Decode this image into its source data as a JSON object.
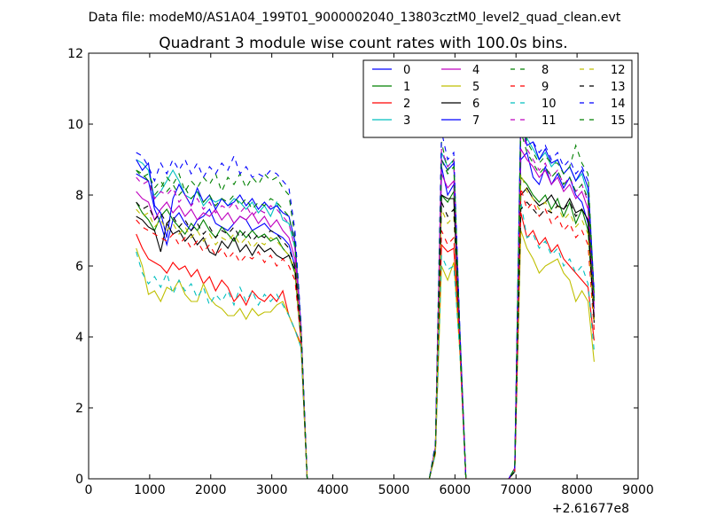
{
  "suptitle": "Data file: modeM0/AS1A04_199T01_9000002040_13803cztM0_level2_quad_clean.evt",
  "chart_data": {
    "type": "line",
    "title": "Quadrant 3 module wise count rates with 100.0s bins.",
    "xlabel": "",
    "ylabel": "",
    "x_offset_label": "+2.61677e8",
    "xlim": [
      0,
      9000
    ],
    "ylim": [
      0,
      12
    ],
    "xticks": [
      0,
      1000,
      2000,
      3000,
      4000,
      5000,
      6000,
      7000,
      8000,
      9000
    ],
    "yticks": [
      0,
      2,
      4,
      6,
      8,
      10,
      12
    ],
    "x": [
      780,
      880,
      980,
      1080,
      1180,
      1280,
      1380,
      1480,
      1580,
      1680,
      1780,
      1880,
      1980,
      2080,
      2180,
      2280,
      2380,
      2480,
      2580,
      2680,
      2780,
      2880,
      2980,
      3080,
      3180,
      3280,
      3380,
      3480,
      3580,
      3680,
      5580,
      5680,
      5780,
      5880,
      5980,
      6080,
      6180,
      6280,
      6880,
      6980,
      7080,
      7180,
      7280,
      7380,
      7480,
      7580,
      7680,
      7780,
      7880,
      7980,
      8080,
      8180,
      8280
    ],
    "legend": {
      "location": "upper right",
      "ncol": 4
    },
    "series": [
      {
        "name": "0",
        "color": "#0000ff",
        "dash": "solid",
        "values": [
          8.6,
          8.5,
          8.4,
          7.6,
          7.2,
          6.6,
          7.3,
          7.5,
          7.2,
          7.0,
          7.3,
          7.4,
          7.6,
          7.2,
          7.1,
          7.0,
          7.2,
          7.4,
          7.3,
          7.0,
          7.1,
          7.2,
          7.0,
          6.9,
          6.8,
          6.6,
          6.0,
          4.0,
          0.0,
          0.0,
          0.0,
          0.8,
          8.8,
          8.0,
          8.3,
          4.0,
          0.0,
          0.0,
          0.0,
          0.2,
          9.0,
          9.2,
          8.5,
          8.3,
          8.8,
          8.3,
          8.6,
          8.2,
          8.5,
          8.0,
          7.8,
          7.2,
          4.8
        ]
      },
      {
        "name": "1",
        "color": "#008000",
        "dash": "solid",
        "values": [
          7.8,
          7.5,
          7.3,
          7.0,
          7.4,
          7.6,
          7.3,
          7.1,
          6.9,
          7.2,
          7.0,
          7.3,
          7.0,
          6.8,
          7.1,
          6.9,
          6.7,
          7.0,
          6.8,
          7.0,
          6.8,
          6.9,
          6.7,
          6.8,
          6.5,
          6.3,
          5.8,
          3.9,
          0.0,
          0.0,
          0.0,
          0.8,
          8.0,
          7.8,
          8.1,
          4.0,
          0.0,
          0.0,
          0.0,
          0.2,
          8.5,
          8.3,
          8.0,
          7.8,
          8.0,
          7.6,
          7.9,
          7.4,
          7.8,
          7.2,
          7.6,
          7.0,
          4.5
        ]
      },
      {
        "name": "2",
        "color": "#ff0000",
        "dash": "solid",
        "values": [
          6.9,
          6.5,
          6.2,
          6.1,
          6.0,
          5.8,
          6.1,
          5.9,
          6.0,
          5.7,
          5.9,
          5.5,
          5.7,
          5.3,
          5.6,
          5.4,
          5.0,
          5.2,
          4.9,
          5.3,
          5.1,
          5.0,
          5.2,
          5.0,
          5.3,
          4.6,
          4.2,
          3.8,
          0.0,
          0.0,
          0.0,
          0.7,
          6.6,
          6.4,
          6.5,
          3.8,
          0.0,
          0.0,
          0.0,
          0.2,
          7.5,
          6.8,
          7.0,
          6.6,
          6.8,
          6.4,
          6.6,
          6.2,
          6.0,
          5.8,
          5.6,
          5.4,
          3.9
        ]
      },
      {
        "name": "3",
        "color": "#00bfbf",
        "dash": "solid",
        "values": [
          9.0,
          8.9,
          8.7,
          7.9,
          8.1,
          8.4,
          8.7,
          8.4,
          8.0,
          7.9,
          8.1,
          7.7,
          7.9,
          7.8,
          7.9,
          7.7,
          7.9,
          7.8,
          7.6,
          7.8,
          7.5,
          7.7,
          7.4,
          7.8,
          7.3,
          7.2,
          6.5,
          4.2,
          0.0,
          0.0,
          0.0,
          0.9,
          9.2,
          8.8,
          9.0,
          4.2,
          0.0,
          0.0,
          0.0,
          0.3,
          10.5,
          9.6,
          9.3,
          9.0,
          9.2,
          8.8,
          9.0,
          8.6,
          8.8,
          8.4,
          8.6,
          8.0,
          5.0
        ]
      },
      {
        "name": "4",
        "color": "#bf00bf",
        "dash": "solid",
        "values": [
          8.1,
          7.9,
          7.8,
          7.3,
          7.6,
          7.8,
          7.5,
          7.7,
          7.4,
          7.6,
          7.3,
          7.5,
          7.4,
          7.6,
          7.3,
          7.5,
          7.2,
          7.4,
          7.3,
          7.5,
          7.2,
          7.4,
          7.1,
          7.3,
          7.0,
          6.8,
          6.2,
          4.1,
          0.0,
          0.0,
          0.0,
          0.8,
          8.6,
          8.2,
          8.4,
          4.0,
          0.0,
          0.0,
          0.0,
          0.2,
          9.3,
          9.0,
          8.8,
          8.5,
          8.7,
          8.3,
          8.5,
          8.1,
          8.3,
          7.9,
          8.1,
          7.6,
          4.6
        ]
      },
      {
        "name": "5",
        "color": "#bfbf00",
        "dash": "solid",
        "values": [
          6.5,
          6.0,
          5.2,
          5.3,
          5.0,
          5.4,
          5.3,
          5.6,
          5.2,
          5.0,
          5.0,
          5.5,
          5.1,
          4.9,
          4.8,
          4.6,
          4.6,
          4.8,
          4.5,
          4.8,
          4.6,
          4.7,
          4.7,
          4.9,
          5.0,
          4.6,
          4.2,
          3.7,
          0.0,
          0.0,
          0.0,
          0.7,
          6.0,
          5.6,
          6.1,
          3.6,
          0.0,
          0.0,
          0.0,
          0.2,
          7.0,
          6.5,
          6.2,
          5.8,
          6.0,
          6.1,
          6.2,
          5.8,
          5.6,
          5.0,
          5.3,
          5.0,
          3.3
        ]
      },
      {
        "name": "6",
        "color": "#000000",
        "dash": "solid",
        "values": [
          7.4,
          7.3,
          7.1,
          7.0,
          6.4,
          7.2,
          6.9,
          7.0,
          6.7,
          6.9,
          6.6,
          6.8,
          6.4,
          6.3,
          6.7,
          6.5,
          6.8,
          6.4,
          6.6,
          6.3,
          6.6,
          6.4,
          6.5,
          6.3,
          6.2,
          6.3,
          5.9,
          3.9,
          0.0,
          0.0,
          0.0,
          0.8,
          8.0,
          7.9,
          7.9,
          4.0,
          0.0,
          0.0,
          0.0,
          0.2,
          8.0,
          8.2,
          7.9,
          7.7,
          7.8,
          8.0,
          7.7,
          7.6,
          7.9,
          7.5,
          7.6,
          7.3,
          4.4
        ]
      },
      {
        "name": "7",
        "color": "#0000ff",
        "dash": "solid",
        "values": [
          9.0,
          8.7,
          8.9,
          7.7,
          7.5,
          6.8,
          7.9,
          8.3,
          8.0,
          7.7,
          8.2,
          7.8,
          8.0,
          7.6,
          7.9,
          7.7,
          7.8,
          8.0,
          7.7,
          7.9,
          7.6,
          7.8,
          7.6,
          7.7,
          7.5,
          7.4,
          6.7,
          4.3,
          0.0,
          0.0,
          0.0,
          0.9,
          9.0,
          8.7,
          8.9,
          4.2,
          0.0,
          0.0,
          0.0,
          0.3,
          10.2,
          9.4,
          9.5,
          9.0,
          9.3,
          8.9,
          9.0,
          8.6,
          8.8,
          8.4,
          8.7,
          8.2,
          5.1
        ]
      },
      {
        "name": "8",
        "color": "#008000",
        "dash": "dashed",
        "values": [
          8.7,
          8.6,
          8.4,
          8.0,
          8.2,
          8.5,
          8.3,
          8.6,
          8.1,
          8.4,
          8.2,
          8.5,
          8.3,
          8.6,
          8.1,
          8.5,
          8.3,
          8.6,
          8.2,
          8.5,
          8.3,
          8.6,
          8.4,
          8.5,
          8.2,
          8.0,
          6.8,
          4.3,
          0.0,
          0.0,
          0.0,
          0.9,
          9.5,
          8.7,
          9.0,
          4.2,
          0.0,
          0.0,
          0.0,
          0.3,
          10.3,
          9.5,
          9.2,
          8.9,
          9.1,
          8.9,
          8.9,
          8.6,
          8.8,
          9.4,
          8.9,
          8.6,
          5.2
        ]
      },
      {
        "name": "9",
        "color": "#ff0000",
        "dash": "dashed",
        "values": [
          7.3,
          7.1,
          7.0,
          6.9,
          6.8,
          6.7,
          6.9,
          6.6,
          6.8,
          6.5,
          6.7,
          6.4,
          6.6,
          6.3,
          6.5,
          6.2,
          6.4,
          6.1,
          6.3,
          6.2,
          6.4,
          6.1,
          6.3,
          6.0,
          6.2,
          6.0,
          5.6,
          3.9,
          0.0,
          0.0,
          0.0,
          0.8,
          7.0,
          6.6,
          6.8,
          3.8,
          0.0,
          0.0,
          0.0,
          0.2,
          8.2,
          7.6,
          7.8,
          7.4,
          7.6,
          7.2,
          7.4,
          7.0,
          7.2,
          6.8,
          7.0,
          6.6,
          4.2
        ]
      },
      {
        "name": "10",
        "color": "#00bfbf",
        "dash": "dashed",
        "values": [
          6.4,
          5.8,
          5.5,
          5.7,
          5.4,
          5.8,
          5.2,
          5.6,
          5.3,
          5.5,
          5.1,
          5.4,
          4.9,
          5.2,
          5.0,
          5.3,
          4.9,
          5.4,
          5.0,
          5.3,
          4.9,
          5.2,
          5.0,
          5.2,
          4.9,
          4.6,
          4.2,
          3.7,
          0.0,
          0.0,
          0.0,
          0.7,
          6.3,
          5.9,
          6.0,
          3.6,
          0.0,
          0.0,
          0.0,
          0.2,
          7.8,
          6.8,
          6.9,
          6.5,
          6.7,
          6.3,
          6.5,
          6.0,
          6.2,
          5.8,
          6.0,
          5.5,
          3.6
        ]
      },
      {
        "name": "11",
        "color": "#bf00bf",
        "dash": "dashed",
        "values": [
          8.5,
          8.3,
          8.4,
          7.9,
          8.1,
          8.0,
          8.2,
          7.8,
          8.0,
          7.7,
          7.9,
          7.6,
          7.8,
          7.5,
          7.7,
          7.6,
          7.8,
          7.5,
          7.7,
          7.4,
          7.6,
          7.5,
          7.7,
          7.6,
          7.4,
          7.2,
          6.5,
          4.2,
          0.0,
          0.0,
          0.0,
          0.9,
          9.3,
          8.8,
          9.0,
          4.1,
          0.0,
          0.0,
          0.0,
          0.3,
          10.0,
          9.3,
          9.0,
          8.7,
          8.9,
          8.5,
          8.7,
          8.3,
          8.5,
          8.1,
          8.3,
          7.8,
          4.9
        ]
      },
      {
        "name": "12",
        "color": "#bfbf00",
        "dash": "dashed",
        "values": [
          7.6,
          7.4,
          7.5,
          7.1,
          7.3,
          7.0,
          7.2,
          6.9,
          7.1,
          6.8,
          7.0,
          6.7,
          6.9,
          6.6,
          6.8,
          6.7,
          6.9,
          6.6,
          6.8,
          6.5,
          6.7,
          6.6,
          6.8,
          6.7,
          6.5,
          6.3,
          5.9,
          4.0,
          0.0,
          0.0,
          0.0,
          0.8,
          7.6,
          7.2,
          7.4,
          3.9,
          0.0,
          0.0,
          0.0,
          0.2,
          8.6,
          8.1,
          7.9,
          7.6,
          7.8,
          7.5,
          7.7,
          7.3,
          7.5,
          7.1,
          7.3,
          6.9,
          4.4
        ]
      },
      {
        "name": "13",
        "color": "#000000",
        "dash": "dashed",
        "values": [
          7.8,
          7.6,
          7.7,
          7.3,
          7.5,
          7.2,
          7.4,
          7.1,
          7.3,
          7.0,
          7.2,
          6.9,
          7.1,
          6.8,
          7.0,
          6.9,
          7.1,
          6.8,
          7.0,
          6.7,
          6.9,
          6.8,
          7.0,
          6.9,
          6.7,
          6.5,
          6.0,
          4.0,
          0.0,
          0.0,
          0.0,
          0.8,
          7.8,
          7.4,
          7.6,
          3.9,
          0.0,
          0.0,
          0.0,
          0.2,
          7.6,
          7.8,
          7.6,
          7.4,
          7.6,
          7.5,
          7.7,
          7.6,
          7.8,
          7.4,
          7.6,
          7.3,
          4.5
        ]
      },
      {
        "name": "14",
        "color": "#0000ff",
        "dash": "dashed",
        "values": [
          9.2,
          9.1,
          8.8,
          8.4,
          8.9,
          8.6,
          9.0,
          8.7,
          9.0,
          8.6,
          8.9,
          8.5,
          8.8,
          8.6,
          8.9,
          8.7,
          9.1,
          8.6,
          8.8,
          8.5,
          8.6,
          8.5,
          8.7,
          8.6,
          8.4,
          8.2,
          7.0,
          4.4,
          0.0,
          0.0,
          0.0,
          1.0,
          9.8,
          9.0,
          9.2,
          4.3,
          0.0,
          0.0,
          0.0,
          0.3,
          10.4,
          9.7,
          9.5,
          9.2,
          9.4,
          9.0,
          9.2,
          8.8,
          9.0,
          8.6,
          8.8,
          8.4,
          5.3
        ]
      },
      {
        "name": "15",
        "color": "#008000",
        "dash": "dashed",
        "values": [
          8.7,
          8.5,
          8.6,
          8.2,
          8.4,
          8.1,
          8.3,
          8.0,
          8.2,
          7.9,
          8.1,
          7.8,
          8.0,
          7.7,
          7.9,
          7.8,
          8.0,
          7.7,
          7.9,
          7.6,
          7.8,
          7.7,
          7.9,
          7.8,
          7.6,
          7.4,
          6.6,
          4.2,
          0.0,
          0.0,
          0.0,
          0.9,
          9.0,
          8.6,
          8.8,
          4.1,
          0.0,
          0.0,
          0.0,
          0.3,
          9.8,
          9.2,
          8.9,
          8.6,
          8.8,
          8.5,
          8.7,
          8.3,
          8.5,
          8.1,
          8.3,
          7.9,
          5.0
        ]
      }
    ]
  }
}
